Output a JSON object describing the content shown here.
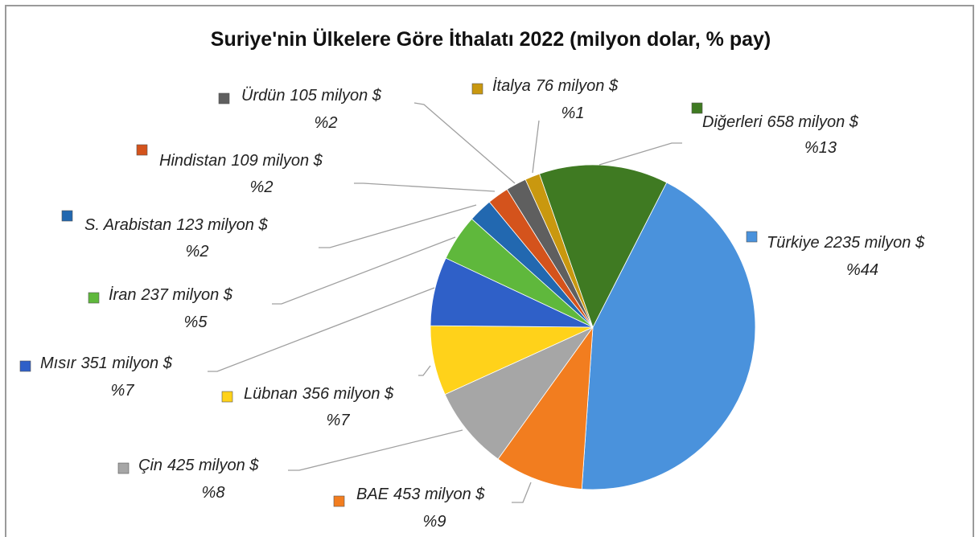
{
  "chart_data": {
    "type": "pie",
    "title": "Suriye'nin Ülkelere Göre İthalatı 2022 (milyon dolar, % pay)",
    "categories": [
      "Türkiye",
      "BAE",
      "Çin",
      "Lübnan",
      "Mısır",
      "İran",
      "S. Arabistan",
      "Hindistan",
      "Ürdün",
      "İtalya",
      "Diğerleri"
    ],
    "values": [
      2235,
      453,
      425,
      356,
      351,
      237,
      123,
      109,
      105,
      76,
      658
    ],
    "value_labels": [
      "2235 milyon $",
      "453 milyon $",
      "425 milyon $",
      "356 milyon $",
      "351 milyon $",
      "237 milyon $",
      "123 milyon $",
      "109 milyon $",
      "105 milyon $",
      "76 milyon $",
      "658 milyon $"
    ],
    "percent_labels": [
      "%44",
      "%9",
      "%8",
      "%7",
      "%7",
      "%5",
      "%2",
      "%2",
      "%2",
      "%1",
      "%13"
    ],
    "colors": [
      "#4a92dc",
      "#f27d1f",
      "#a6a6a6",
      "#ffd21a",
      "#2f60c8",
      "#5fb83c",
      "#2268b0",
      "#d4531c",
      "#5f5f5f",
      "#c9980f",
      "#3f7a22"
    ]
  }
}
